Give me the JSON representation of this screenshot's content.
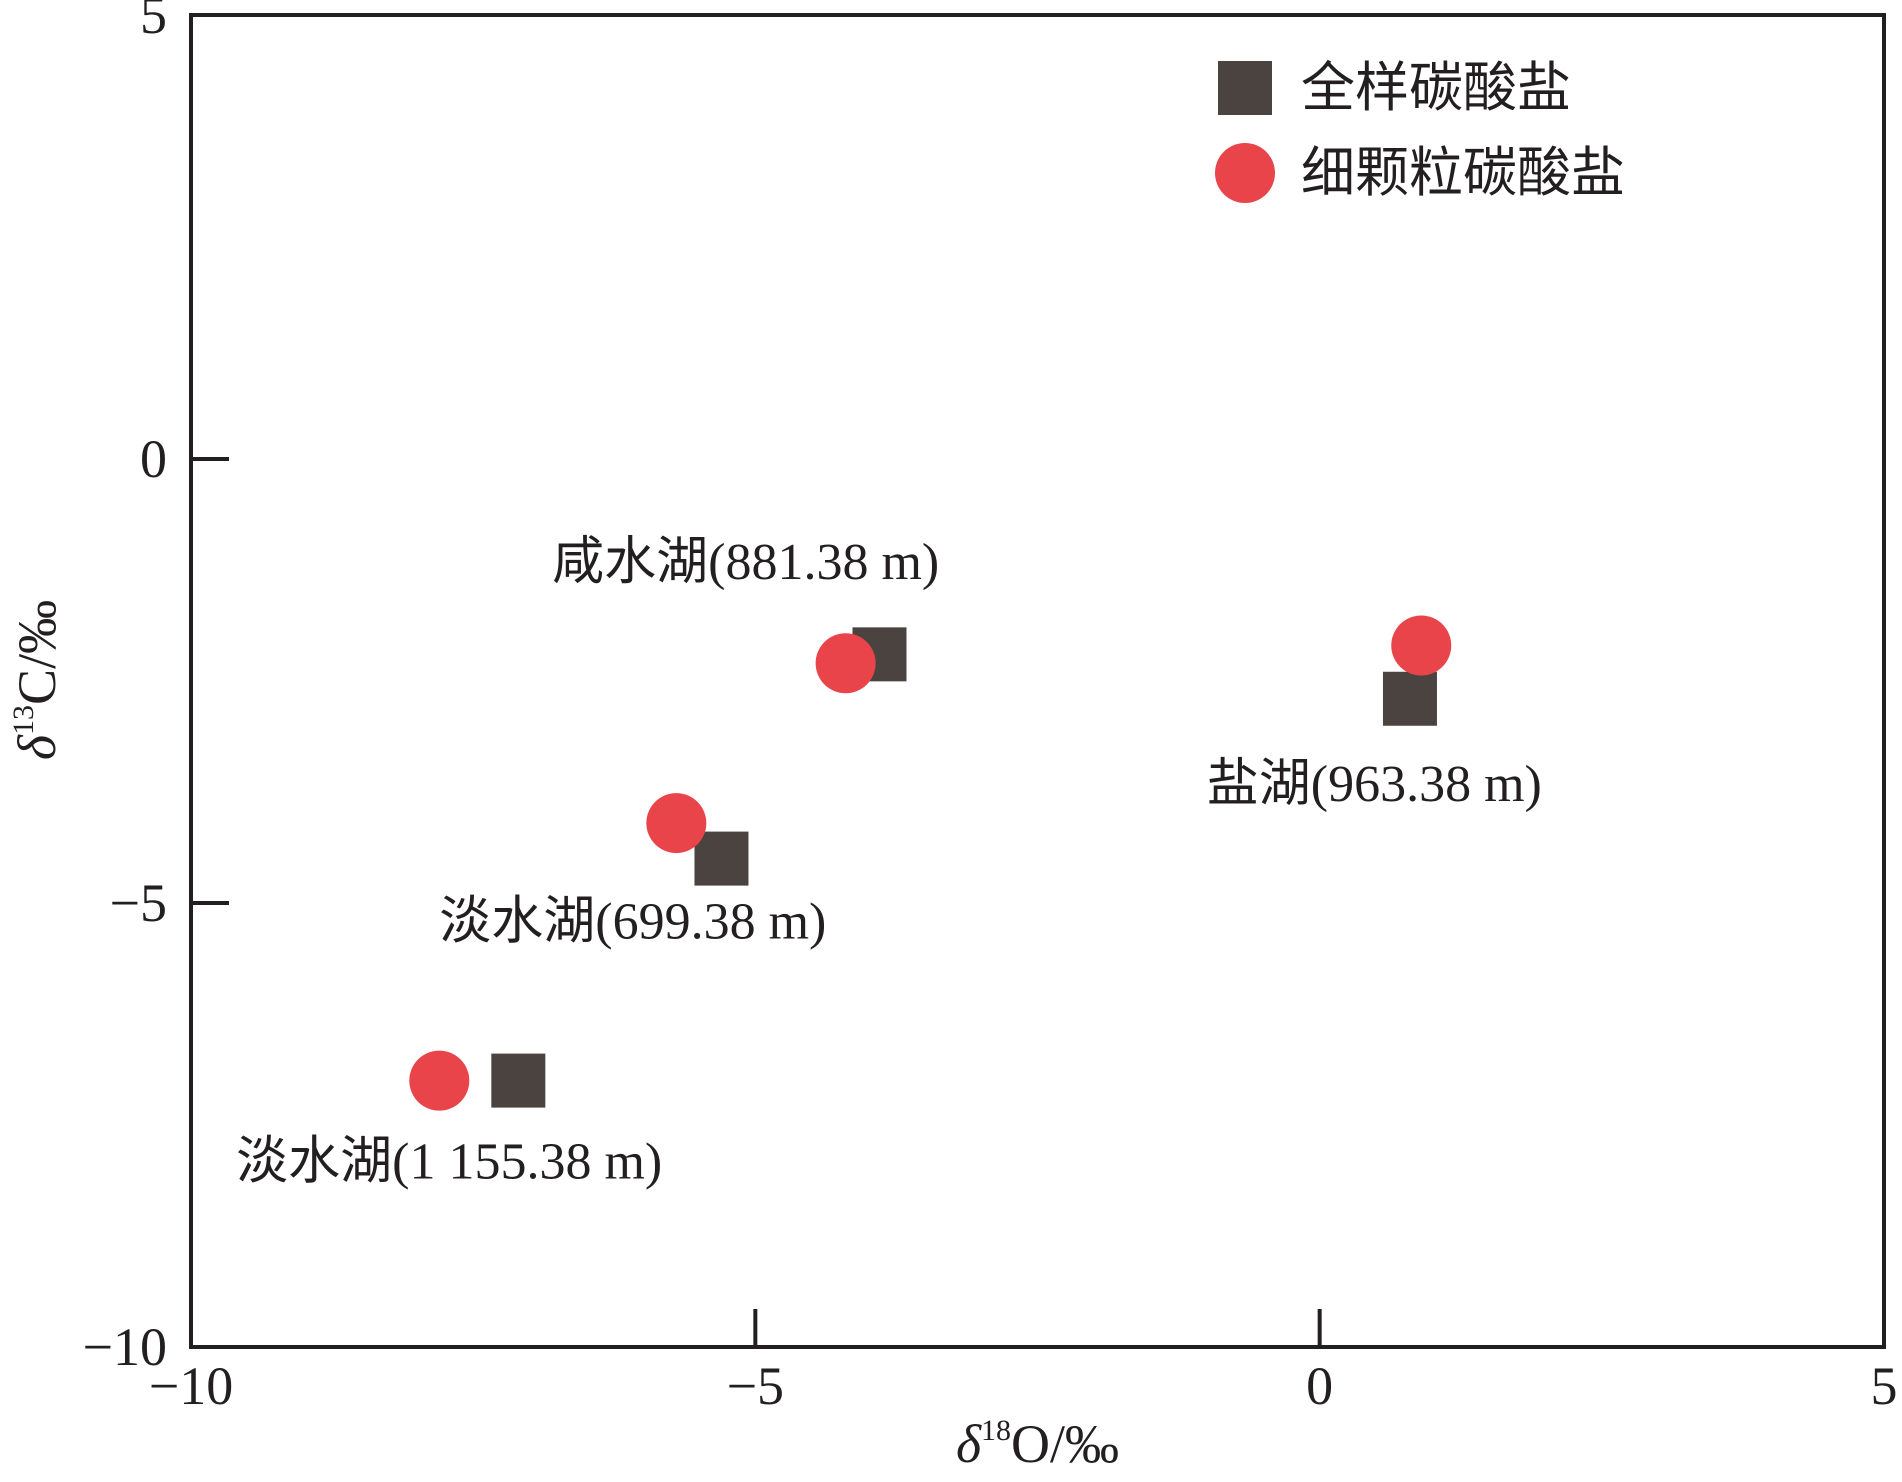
{
  "chart_data": {
    "type": "scatter",
    "xlabel": {
      "prefix": "δ",
      "sup": "18",
      "suffix": "O/‰"
    },
    "ylabel": {
      "prefix": "δ",
      "sup": "13",
      "suffix": "C/‰"
    },
    "xlim": [
      -10,
      5
    ],
    "ylim": [
      -10,
      5
    ],
    "xticks": [
      {
        "value": -10,
        "label": "−10"
      },
      {
        "value": -5,
        "label": "−5"
      },
      {
        "value": 0,
        "label": "0"
      },
      {
        "value": 5,
        "label": "5"
      }
    ],
    "yticks": [
      {
        "value": 5,
        "label": "5"
      },
      {
        "value": 0,
        "label": "0"
      },
      {
        "value": -5,
        "label": "−5"
      },
      {
        "value": -10,
        "label": "−10"
      }
    ],
    "grid": false,
    "legend_position": "top-right",
    "series": [
      {
        "name": "全样碳酸盐",
        "marker": "square",
        "color": "#4a4340",
        "points": [
          {
            "x": -7.1,
            "y": -7.0
          },
          {
            "x": -5.3,
            "y": -4.5
          },
          {
            "x": -3.9,
            "y": -2.2
          },
          {
            "x": 0.8,
            "y": -2.7
          }
        ]
      },
      {
        "name": "细颗粒碳酸盐",
        "marker": "circle",
        "color": "#e8444a",
        "points": [
          {
            "x": -7.8,
            "y": -7.0
          },
          {
            "x": -5.7,
            "y": -4.1
          },
          {
            "x": -4.2,
            "y": -2.3
          },
          {
            "x": 0.9,
            "y": -2.1
          }
        ]
      }
    ],
    "annotations": [
      {
        "text": "咸水湖(881.38 m)",
        "x": -6.8,
        "y": -1.35
      },
      {
        "text": "盐湖(963.38 m)",
        "x": -1.0,
        "y": -3.85
      },
      {
        "text": "淡水湖(699.38 m)",
        "x": -7.8,
        "y": -5.4
      },
      {
        "text": "淡水湖(1 155.38 m)",
        "x": -9.6,
        "y": -8.1
      }
    ]
  }
}
